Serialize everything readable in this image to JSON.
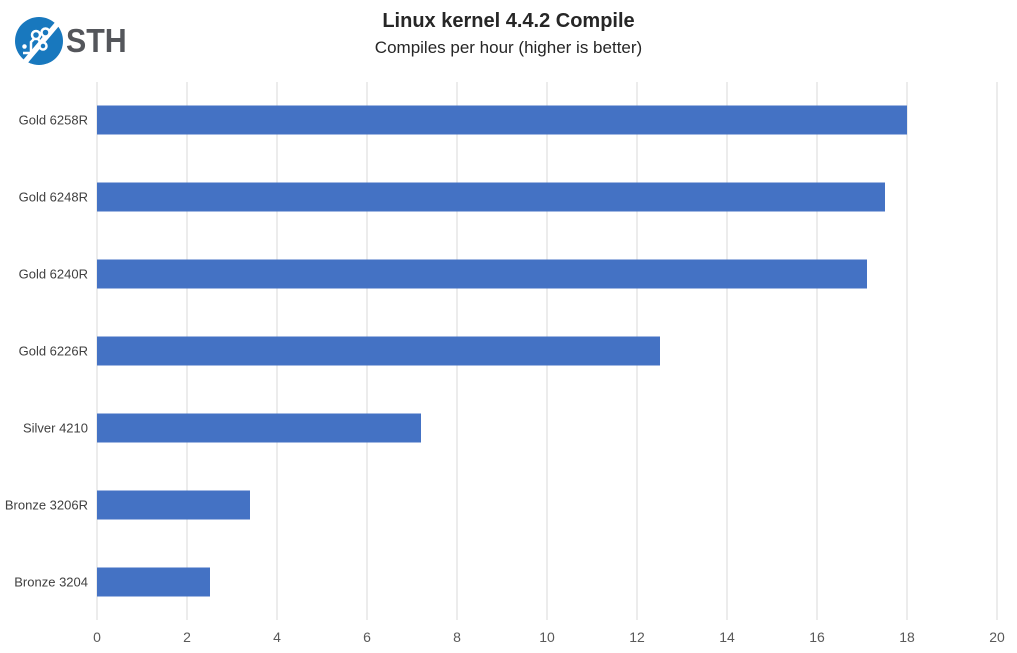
{
  "logo": {
    "text": "STH",
    "circle_color": "#1878be",
    "trace_color": "#ffffff",
    "text_color": "#54565b"
  },
  "chart_data": {
    "type": "bar",
    "orientation": "horizontal",
    "title": "Linux kernel 4.4.2 Compile",
    "subtitle": "Compiles per hour (higher is better)",
    "categories": [
      "Gold 6258R",
      "Gold 6248R",
      "Gold 6240R",
      "Gold 6226R",
      "Silver 4210",
      "Bronze 3206R",
      "Bronze 3204"
    ],
    "values": [
      18,
      17.5,
      17.1,
      12.5,
      7.2,
      3.4,
      2.5
    ],
    "xlabel": "",
    "ylabel": "",
    "xlim": [
      0,
      20
    ],
    "xticks": [
      0,
      2,
      4,
      6,
      8,
      10,
      12,
      14,
      16,
      18,
      20
    ],
    "grid": true,
    "legend": false,
    "bar_color": "#4472C4",
    "gridline_color": "#D9D9D9"
  }
}
